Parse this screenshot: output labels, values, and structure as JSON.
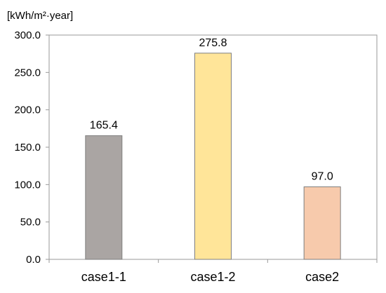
{
  "chart_data": {
    "type": "bar",
    "unit_label": "[kWh/m²·year]",
    "categories": [
      "case1-1",
      "case1-2",
      "case2"
    ],
    "values": [
      165.4,
      275.8,
      97.0
    ],
    "value_labels": [
      "165.4",
      "275.8",
      "97.0"
    ],
    "colors": [
      "#aaa5a3",
      "#ffe599",
      "#f7caac"
    ],
    "ylim": [
      0,
      300
    ],
    "yticks": [
      "0.0",
      "50.0",
      "100.0",
      "150.0",
      "200.0",
      "250.0",
      "300.0"
    ],
    "grid": false,
    "legend": "none"
  }
}
